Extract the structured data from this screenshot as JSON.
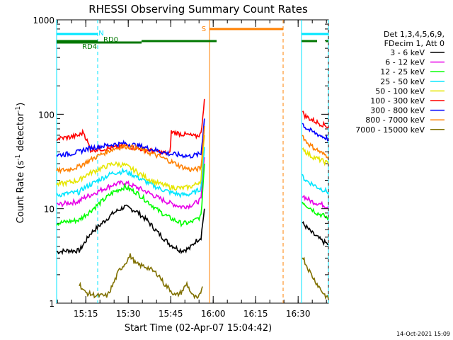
{
  "chart_data": {
    "type": "line",
    "title": "RHESSI Observing Summary Count Rates",
    "xlabel": "Start Time (02-Apr-07 15:04:42)",
    "ylabel_main": "Count Rate (s",
    "ylabel_sup1": "-1",
    "ylabel_mid": " detector",
    "ylabel_sup2": "-1",
    "ylabel_end": ")",
    "yscale": "log",
    "ylim": [
      1,
      1000
    ],
    "xlim_minutes": [
      0,
      96
    ],
    "x_tick_labels": [
      "15:15",
      "15:30",
      "15:45",
      "16:00",
      "16:15",
      "16:30"
    ],
    "x_tick_minutes": [
      10.3,
      25.3,
      40.3,
      55.3,
      70.3,
      85.3
    ],
    "y_tick_labels": [
      "1",
      "10",
      "100",
      "1000"
    ],
    "y_tick_values": [
      1,
      10,
      100,
      1000
    ],
    "legend_header": [
      "Det 1,3,4,5,6,9,",
      "FDecim 1, Att 0"
    ],
    "legend_position": "right",
    "series": [
      {
        "name": "3 - 6 keV",
        "color": "#000000",
        "segments": [
          {
            "t": [
              0,
              4,
              8,
              9.5,
              12,
              16,
              20,
              24,
              28,
              32,
              36,
              40,
              44,
              47,
              49,
              51,
              52.2
            ],
            "y": [
              3.5,
              3.6,
              3.6,
              4.2,
              5.5,
              7,
              9,
              10.5,
              9.5,
              7.5,
              5.5,
              4.2,
              3.6,
              3.8,
              4.5,
              5,
              10
            ]
          },
          {
            "t": [
              86.8,
              88,
              90,
              92,
              94,
              96
            ],
            "y": [
              7,
              6.5,
              5.6,
              5,
              4.5,
              4.2
            ]
          }
        ]
      },
      {
        "name": "6 - 12 keV",
        "color": "#e800e8",
        "segments": [
          {
            "t": [
              0,
              4,
              8,
              9.5,
              12,
              16,
              20,
              24,
              28,
              32,
              36,
              40,
              44,
              47,
              49,
              51,
              52.2
            ],
            "y": [
              11,
              11.5,
              12,
              13,
              14,
              16,
              18,
              19,
              17,
              15,
              13,
              11.5,
              10.5,
              10.8,
              11.5,
              12.5,
              35
            ]
          },
          {
            "t": [
              86.8,
              88,
              90,
              92,
              94,
              96
            ],
            "y": [
              14,
              13,
              12,
              11.5,
              11,
              10.5
            ]
          }
        ]
      },
      {
        "name": "12 - 25 keV",
        "color": "#00ff00",
        "segments": [
          {
            "t": [
              0,
              4,
              8,
              9.5,
              12,
              16,
              20,
              24,
              28,
              32,
              36,
              40,
              44,
              47,
              49,
              51,
              52.2
            ],
            "y": [
              7,
              7.3,
              7.6,
              8.3,
              9.5,
              12,
              15,
              17,
              15,
              12,
              9.5,
              8,
              7,
              7.1,
              7.6,
              8.3,
              30
            ]
          },
          {
            "t": [
              86.8,
              88,
              90,
              92,
              94,
              96
            ],
            "y": [
              12,
              11,
              10,
              9,
              8.5,
              8
            ]
          }
        ]
      },
      {
        "name": "25 - 50 keV",
        "color": "#00e6ff",
        "segments": [
          {
            "t": [
              0,
              4,
              8,
              9.5,
              12,
              16,
              20,
              24,
              28,
              32,
              36,
              40,
              44,
              47,
              49,
              51,
              52.2
            ],
            "y": [
              14,
              14.5,
              15,
              16.5,
              18,
              21,
              24,
              25,
              22,
              19,
              16.5,
              15,
              14,
              14.3,
              15,
              16.5,
              45
            ]
          },
          {
            "t": [
              86.8,
              88,
              90,
              92,
              94,
              96
            ],
            "y": [
              22,
              20,
              18.5,
              17,
              16,
              15
            ]
          }
        ]
      },
      {
        "name": "50 - 100 keV",
        "color": "#e6e600",
        "segments": [
          {
            "t": [
              0,
              4,
              8,
              9.5,
              12,
              16,
              20,
              24,
              28,
              32,
              36,
              40,
              44,
              47,
              49,
              51,
              52.2
            ],
            "y": [
              18,
              19,
              20,
              22,
              24,
              27,
              30,
              29,
              25,
              21,
              18.5,
              17,
              16.5,
              17,
              18,
              20,
              60
            ]
          },
          {
            "t": [
              86.8,
              88,
              90,
              92,
              94,
              96
            ],
            "y": [
              45,
              40,
              36,
              34,
              32,
              30
            ]
          }
        ]
      },
      {
        "name": "100 - 300 keV",
        "color": "#ff0000",
        "segments": [
          {
            "t": [
              0,
              4,
              8,
              9.5,
              12,
              16,
              20,
              24,
              28,
              32,
              36,
              40,
              40.5,
              44,
              47,
              49,
              51,
              52.2
            ],
            "y": [
              55,
              57,
              60,
              65,
              42,
              43,
              44,
              46,
              44,
              42,
              40,
              38,
              65,
              62,
              60,
              58,
              62,
              145
            ]
          },
          {
            "t": [
              86.8,
              88,
              90,
              92,
              94,
              96
            ],
            "y": [
              105,
              95,
              88,
              82,
              78,
              74
            ]
          }
        ]
      },
      {
        "name": "300 - 800 keV",
        "color": "#0000ff",
        "segments": [
          {
            "t": [
              0,
              4,
              8,
              9.5,
              12,
              16,
              20,
              24,
              28,
              32,
              36,
              40,
              44,
              47,
              49,
              51,
              52.2
            ],
            "y": [
              37,
              38,
              40,
              42,
              44,
              46,
              48,
              49,
              47,
              44,
              41,
              38,
              37,
              36,
              37,
              38,
              90
            ]
          },
          {
            "t": [
              86.8,
              88,
              90,
              92,
              94,
              96
            ],
            "y": [
              80,
              72,
              66,
              62,
              58,
              55
            ]
          }
        ]
      },
      {
        "name": "800 - 7000 keV",
        "color": "#ff8000",
        "segments": [
          {
            "t": [
              0,
              4,
              8,
              9.5,
              12,
              16,
              20,
              24,
              28,
              32,
              36,
              40,
              44,
              47,
              49,
              51,
              52.2
            ],
            "y": [
              25,
              26,
              28,
              30,
              33,
              38,
              43,
              46,
              44,
              40,
              36,
              32,
              28,
              26,
              26,
              27,
              75
            ]
          },
          {
            "t": [
              86.8,
              88,
              90,
              92,
              94,
              96
            ],
            "y": [
              60,
              52,
              46,
              42,
              38,
              36
            ]
          }
        ]
      },
      {
        "name": "7000 - 15000 keV",
        "color": "#807000",
        "segments": [
          {
            "t": [
              8,
              10,
              14,
              18,
              20,
              22,
              24,
              26,
              28,
              32,
              36,
              38,
              40,
              42,
              44,
              46,
              48,
              50,
              51.5
            ],
            "y": [
              1.6,
              1.3,
              1.2,
              1.2,
              1.6,
              2.2,
              2.6,
              3.2,
              2.6,
              2.4,
              2,
              1.6,
              1.4,
              1.2,
              1.3,
              1.6,
              1.2,
              1.1,
              1.5
            ]
          },
          {
            "t": [
              86.8,
              88,
              90,
              92,
              94,
              96
            ],
            "y": [
              3.2,
              2.6,
              2,
              1.6,
              1.3,
              1.1
            ]
          }
        ]
      }
    ],
    "flags": [
      {
        "label": "N",
        "color": "#00e6ff",
        "segments": [
          [
            0,
            14.5
          ],
          [
            86.5,
            96
          ]
        ]
      },
      {
        "label": "RD0",
        "color": "#007700",
        "segments": [
          [
            0,
            14.5
          ],
          [
            30,
            56.5
          ],
          [
            86.5,
            92
          ],
          [
            95,
            96
          ]
        ]
      },
      {
        "label": "RD4",
        "color": "#007700",
        "segments": [
          [
            0,
            4
          ],
          [
            4,
            30
          ]
        ]
      },
      {
        "label": "S",
        "color": "#ff8000",
        "segments": [
          [
            54,
            80
          ]
        ]
      }
    ],
    "vertical_lines": [
      {
        "t": 0,
        "color": "#00e6ff",
        "style": "solid"
      },
      {
        "t": 14.5,
        "color": "#00e6ff",
        "style": "dashed"
      },
      {
        "t": 54,
        "color": "#ff8000",
        "style": "solid"
      },
      {
        "t": 80,
        "color": "#ff8000",
        "style": "dashed"
      },
      {
        "t": 86.5,
        "color": "#00e6ff",
        "style": "solid"
      },
      {
        "t": 96,
        "color": "#00e6ff",
        "style": "dashed"
      }
    ],
    "footer": "14-Oct-2021 15:09"
  }
}
